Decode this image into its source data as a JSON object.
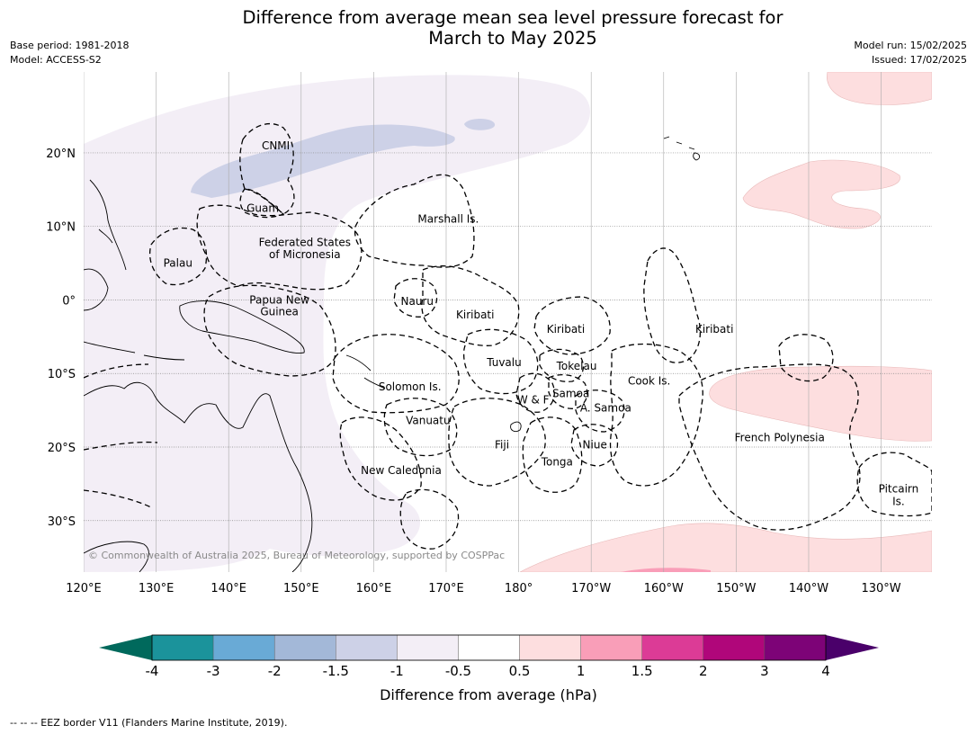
{
  "title_line1": "Difference from average mean sea level pressure forecast for",
  "title_line2": "March to May 2025",
  "meta_left": {
    "base_period": "Base period: 1981-2018",
    "model": "Model: ACCESS-S2"
  },
  "meta_right": {
    "model_run": "Model run: 15/02/2025",
    "issued": "Issued: 17/02/2025"
  },
  "map": {
    "lon_ticks": [
      "120°E",
      "130°E",
      "140°E",
      "150°E",
      "160°E",
      "170°E",
      "180°",
      "170°W",
      "160°W",
      "150°W",
      "140°W",
      "130°W"
    ],
    "lat_ticks": [
      "20°N",
      "10°N",
      "0°",
      "10°S",
      "20°S",
      "30°S"
    ],
    "lon_values": [
      120,
      130,
      140,
      150,
      160,
      170,
      180,
      190,
      200,
      210,
      220,
      230
    ],
    "lat_values": [
      20,
      10,
      0,
      -10,
      -20,
      -30
    ],
    "extent": {
      "lon_min": 120,
      "lon_max": 237,
      "lat_min": -37,
      "lat_max": 31
    },
    "places": [
      {
        "name": "CNMI",
        "lon": 146.5,
        "lat": 21
      },
      {
        "name": "Guam",
        "lon": 144.7,
        "lat": 12.5
      },
      {
        "name": "Marshall Is.",
        "lon": 170.3,
        "lat": 11
      },
      {
        "name": "Federated States",
        "lon": 150.5,
        "lat": 7.8
      },
      {
        "name": "of Micronesia",
        "lon": 150.5,
        "lat": 6.2
      },
      {
        "name": "Palau",
        "lon": 133,
        "lat": 5
      },
      {
        "name": "Papua New",
        "lon": 147,
        "lat": 0
      },
      {
        "name": "Guinea",
        "lon": 147,
        "lat": -1.6
      },
      {
        "name": "Nauru",
        "lon": 166,
        "lat": -0.2
      },
      {
        "name": "Kiribati",
        "lon": 174,
        "lat": -2
      },
      {
        "name": "Kiribati",
        "lon": 186.5,
        "lat": -4
      },
      {
        "name": "Kiribati",
        "lon": 207,
        "lat": -4
      },
      {
        "name": "Tuvalu",
        "lon": 178,
        "lat": -8.5
      },
      {
        "name": "Tokelau",
        "lon": 188,
        "lat": -9
      },
      {
        "name": "Solomon Is.",
        "lon": 165,
        "lat": -11.8
      },
      {
        "name": "Cook Is.",
        "lon": 198,
        "lat": -11
      },
      {
        "name": "Samoa",
        "lon": 187.2,
        "lat": -12.7
      },
      {
        "name": "W & F",
        "lon": 182,
        "lat": -13.6
      },
      {
        "name": "A. Samoa",
        "lon": 192,
        "lat": -14.7
      },
      {
        "name": "Vanuatu",
        "lon": 167.5,
        "lat": -16.4
      },
      {
        "name": "French Polynesia",
        "lon": 216,
        "lat": -18.7
      },
      {
        "name": "Fiji",
        "lon": 177.7,
        "lat": -19.7
      },
      {
        "name": "Niue",
        "lon": 190.5,
        "lat": -19.7
      },
      {
        "name": "Tonga",
        "lon": 185.3,
        "lat": -22
      },
      {
        "name": "New Caledonia",
        "lon": 163.8,
        "lat": -23.2
      },
      {
        "name": "Pitcairn",
        "lon": 232.4,
        "lat": -25.7
      },
      {
        "name": "Is.",
        "lon": 232.4,
        "lat": -27.4
      }
    ],
    "copyright": "© Commonwealth of Australia 2025, Bureau of Meteorology, supported by COSPPac"
  },
  "colorbar": {
    "colors": {
      "low_ext": "#00695c",
      "bins": [
        "#1b939b",
        "#69aad6",
        "#a3b8d8",
        "#cdd1e7",
        "#f3eef6",
        "#ffffff",
        "#fddedf",
        "#f99eb8",
        "#dc3b96",
        "#b0067a",
        "#7d0377"
      ],
      "high_ext": "#4a006a"
    },
    "ticks": [
      "-4",
      "-3",
      "-2",
      "-1.5",
      "-1",
      "-0.5",
      "0.5",
      "1",
      "1.5",
      "2",
      "3",
      "4"
    ],
    "label": "Difference from average (hPa)"
  },
  "footnote": "--  --  -- EEZ border V11 (Flanders Marine Institute, 2019)."
}
